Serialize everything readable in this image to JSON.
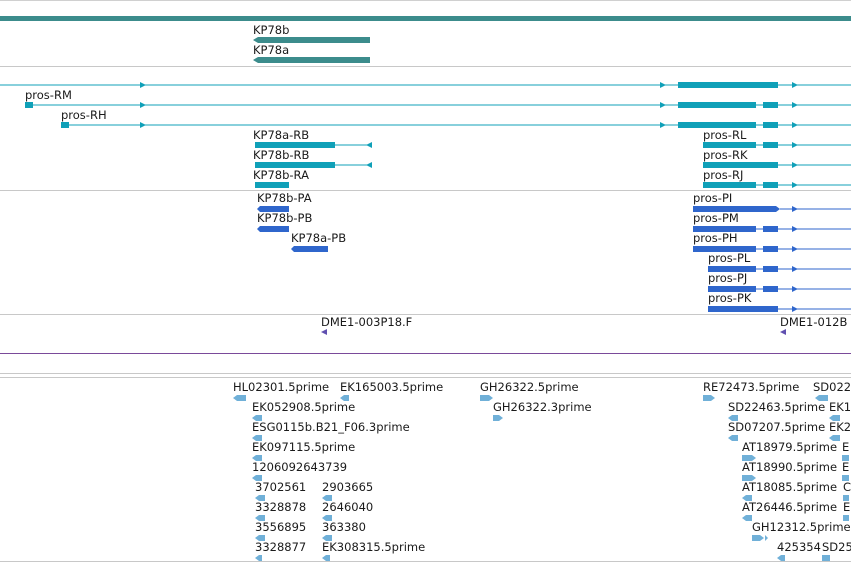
{
  "colors": {
    "top_bar": "#3c8c8c",
    "gene": "#3c8c8c",
    "transcript": "#10a0b8",
    "protein": "#2f66cc",
    "probe": "#6050b0",
    "est": "#70b0d8",
    "divider": "#c8c8c8",
    "purple_line": "#7a4a9a"
  },
  "genes": [
    {
      "id": "g-kp78b",
      "label": "KP78b"
    },
    {
      "id": "g-kp78a",
      "label": "KP78a"
    }
  ],
  "transcripts": [
    {
      "id": "t-rm",
      "label": "pros-RM"
    },
    {
      "id": "t-rh",
      "label": "pros-RH"
    },
    {
      "id": "t-kp78a-rb",
      "label": "KP78a-RB"
    },
    {
      "id": "t-kp78b-rb",
      "label": "KP78b-RB"
    },
    {
      "id": "t-kp78b-ra",
      "label": "KP78b-RA"
    },
    {
      "id": "t-rl",
      "label": "pros-RL"
    },
    {
      "id": "t-rk",
      "label": "pros-RK"
    },
    {
      "id": "t-rj",
      "label": "pros-RJ"
    }
  ],
  "proteins": [
    {
      "id": "p-kp78b-pa",
      "label": "KP78b-PA"
    },
    {
      "id": "p-kp78b-pb",
      "label": "KP78b-PB"
    },
    {
      "id": "p-kp78a-pb",
      "label": "KP78a-PB"
    },
    {
      "id": "p-pi",
      "label": "pros-PI"
    },
    {
      "id": "p-pm",
      "label": "pros-PM"
    },
    {
      "id": "p-ph",
      "label": "pros-PH"
    },
    {
      "id": "p-pl",
      "label": "pros-PL"
    },
    {
      "id": "p-pj",
      "label": "pros-PJ"
    },
    {
      "id": "p-pk",
      "label": "pros-PK"
    }
  ],
  "probes": [
    {
      "id": "pr-1",
      "label": "DME1-003P18.F"
    },
    {
      "id": "pr-2",
      "label": "DME1-012B"
    }
  ],
  "ests": [
    {
      "id": "e1",
      "label": "HL02301.5prime"
    },
    {
      "id": "e2",
      "label": "EK165003.5prime"
    },
    {
      "id": "e3",
      "label": "GH26322.5prime"
    },
    {
      "id": "e4",
      "label": "RE72473.5prime"
    },
    {
      "id": "e5",
      "label": "SD022"
    },
    {
      "id": "e6",
      "label": "EK052908.5prime"
    },
    {
      "id": "e7",
      "label": "GH26322.3prime"
    },
    {
      "id": "e8",
      "label": "SD22463.5prime"
    },
    {
      "id": "e9",
      "label": "EK1"
    },
    {
      "id": "e10",
      "label": "ESG0115b.B21_F06.3prime"
    },
    {
      "id": "e11",
      "label": "SD07207.5prime"
    },
    {
      "id": "e12",
      "label": "EK2"
    },
    {
      "id": "e13",
      "label": "EK097115.5prime"
    },
    {
      "id": "e14",
      "label": "AT18979.5prime"
    },
    {
      "id": "e15",
      "label": "E"
    },
    {
      "id": "e16",
      "label": "1206092643739"
    },
    {
      "id": "e17",
      "label": "AT18990.5prime"
    },
    {
      "id": "e18",
      "label": "E"
    },
    {
      "id": "e19",
      "label": "3702561"
    },
    {
      "id": "e20",
      "label": "2903665"
    },
    {
      "id": "e21",
      "label": "AT18085.5prime"
    },
    {
      "id": "e22",
      "label": "C"
    },
    {
      "id": "e23",
      "label": "3328878"
    },
    {
      "id": "e24",
      "label": "2646040"
    },
    {
      "id": "e25",
      "label": "AT26446.5prime"
    },
    {
      "id": "e26",
      "label": "E"
    },
    {
      "id": "e27",
      "label": "3556895"
    },
    {
      "id": "e28",
      "label": "363380"
    },
    {
      "id": "e29",
      "label": "GH12312.5prime"
    },
    {
      "id": "e30",
      "label": "3328877"
    },
    {
      "id": "e31",
      "label": "EK308315.5prime"
    },
    {
      "id": "e32",
      "label": "425354"
    },
    {
      "id": "e33",
      "label": "SD25"
    }
  ]
}
